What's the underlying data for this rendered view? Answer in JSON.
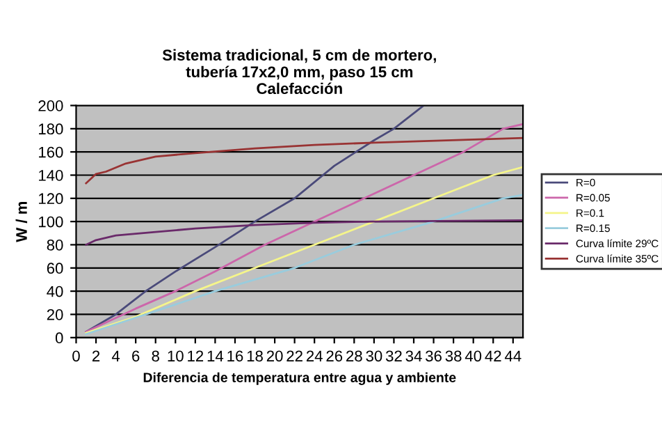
{
  "chart_data": {
    "type": "line",
    "title": "Sistema tradicional, 5 cm de mortero,\ntubería 17x2,0 mm, paso 15 cm\nCalefacción",
    "xlabel": "Diferencia de temperatura entre agua y ambiente",
    "ylabel": "W / m",
    "xlim": [
      0,
      45
    ],
    "xticks": [
      0,
      2,
      4,
      6,
      8,
      10,
      12,
      14,
      16,
      18,
      20,
      22,
      24,
      26,
      28,
      30,
      32,
      34,
      36,
      38,
      40,
      42,
      44
    ],
    "ylim": [
      0,
      200
    ],
    "yticks": [
      0,
      20,
      40,
      60,
      80,
      100,
      120,
      140,
      160,
      180,
      200
    ],
    "grid": "y",
    "legend": "right",
    "marker": "none",
    "line_style": "solid",
    "series": [
      {
        "name": "R=0",
        "color": "#4a4a7a",
        "x": [
          1,
          4,
          7,
          10,
          14,
          18,
          22,
          26,
          30,
          32,
          35
        ],
        "values": [
          5,
          20,
          40,
          57,
          78,
          100,
          120,
          148,
          170,
          180,
          200
        ]
      },
      {
        "name": "R=0.05",
        "color": "#cc66aa",
        "x": [
          1,
          6,
          10,
          14,
          19,
          24,
          29,
          34,
          39,
          43,
          45
        ],
        "values": [
          5,
          25,
          40,
          57,
          80,
          100,
          120,
          140,
          160,
          180,
          184
        ]
      },
      {
        "name": "R=0.1",
        "color": "#f5f58a",
        "x": [
          1,
          6,
          12,
          18,
          24,
          30,
          36,
          42,
          45
        ],
        "values": [
          4,
          18,
          40,
          60,
          80,
          100,
          120,
          140,
          147
        ]
      },
      {
        "name": "R=0.15",
        "color": "#99ccdd",
        "x": [
          1,
          7,
          14,
          22,
          28,
          36,
          43,
          45
        ],
        "values": [
          3,
          20,
          40,
          60,
          80,
          100,
          120,
          123
        ]
      },
      {
        "name": "Curva límite 29ºC",
        "color": "#6a2a6a",
        "x": [
          1,
          2,
          4,
          8,
          12,
          18,
          24,
          30,
          45
        ],
        "values": [
          80,
          84,
          88,
          91,
          94,
          97,
          99,
          100,
          101
        ]
      },
      {
        "name": "Curva límite 35ºC",
        "color": "#993333",
        "x": [
          1,
          2,
          3,
          5,
          8,
          12,
          18,
          24,
          30,
          45
        ],
        "values": [
          133,
          141,
          143,
          150,
          156,
          159,
          163,
          166,
          168,
          172
        ]
      }
    ]
  }
}
